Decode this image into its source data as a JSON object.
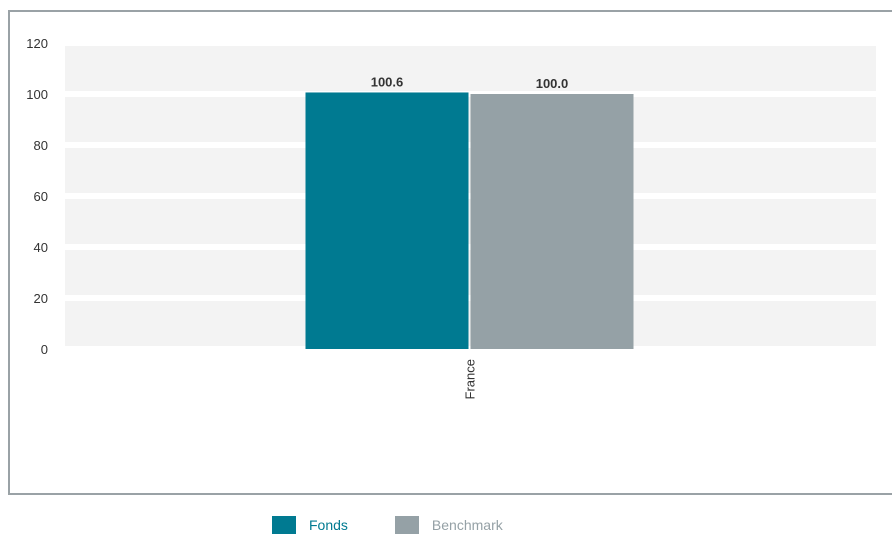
{
  "chart_data": {
    "type": "bar",
    "categories": [
      "France"
    ],
    "series": [
      {
        "name": "Fonds",
        "values": [
          100.6
        ],
        "labels": [
          "100.6"
        ],
        "color": "#007a91"
      },
      {
        "name": "Benchmark",
        "values": [
          100.0
        ],
        "labels": [
          "100.0"
        ],
        "color": "#95a1a6"
      }
    ],
    "ylim": [
      0,
      120
    ],
    "yticks": [
      "0",
      "20",
      "40",
      "60",
      "80",
      "100",
      "120"
    ],
    "grid": "alternating bands",
    "legend_position": "bottom-center",
    "title": "",
    "xlabel": "",
    "ylabel": ""
  },
  "colors": {
    "band": "#f3f3f3",
    "frame": "#9aa2a6",
    "legend_fonds_text": "#007a91",
    "legend_benchmark_text": "#95a1a6"
  }
}
